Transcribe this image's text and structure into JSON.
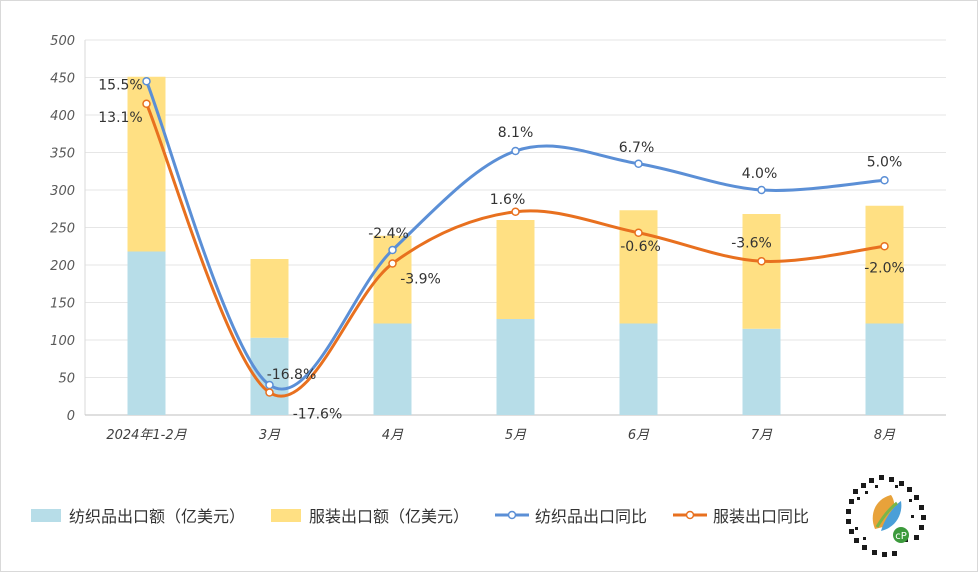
{
  "chart_data": {
    "type": "bar+line",
    "categories": [
      "2024年1-2月",
      "3月",
      "4月",
      "5月",
      "6月",
      "7月",
      "8月"
    ],
    "ylim": [
      0,
      500
    ],
    "yticks": [
      0,
      50,
      100,
      150,
      200,
      250,
      300,
      350,
      400,
      450,
      500
    ],
    "stacked_bars": [
      {
        "name": "纺织品出口额（亿美元）",
        "color": "#b7dde8",
        "values": [
          218,
          103,
          122,
          128,
          122,
          115,
          122
        ]
      },
      {
        "name": "服装出口额（亿美元）",
        "color": "#ffe083",
        "values": [
          233,
          105,
          117,
          132,
          151,
          153,
          157
        ]
      }
    ],
    "lines": [
      {
        "name": "纺织品出口同比",
        "color": "#5b8fd6",
        "positions": [
          445,
          40,
          220,
          352,
          335,
          300,
          313
        ],
        "labels": [
          "15.5%",
          "-16.8%",
          "-2.4%",
          "8.1%",
          "6.7%",
          "4.0%",
          "5.0%"
        ]
      },
      {
        "name": "服装出口同比",
        "color": "#e8701f",
        "positions": [
          415,
          30,
          202,
          271,
          243,
          205,
          225
        ],
        "labels": [
          "13.1%",
          "-17.6%",
          "-3.9%",
          "1.6%",
          "-0.6%",
          "-3.6%",
          "-2.0%"
        ]
      }
    ],
    "grid": true,
    "legend_position": "bottom"
  },
  "legend": {
    "textile_bar": "纺织品出口额（亿美元）",
    "apparel_bar": "服装出口额（亿美元）",
    "textile_line": "纺织品出口同比",
    "apparel_line": "服装出口同比"
  }
}
